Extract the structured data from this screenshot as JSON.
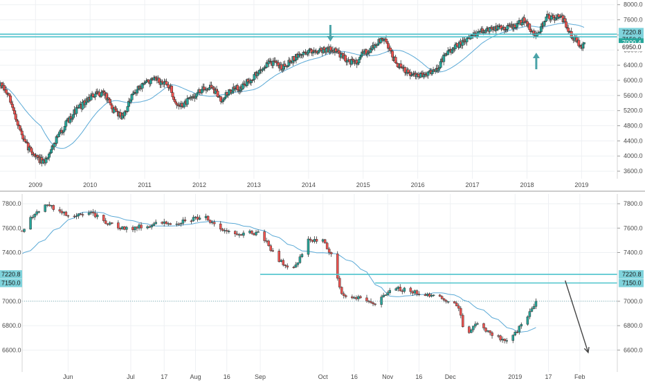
{
  "colors": {
    "up": "#26a69a",
    "down": "#ef5350",
    "ma": "#5aa9d6",
    "level": "#4cc3cc",
    "level_tag": "#7fd3dc",
    "price_tag": "#26a69a",
    "arrow_teal": "#4aa3a8",
    "arrow_dark": "#444444",
    "grid": "#eef0f3",
    "axis_text": "#4a4a4a"
  },
  "chart_data": [
    {
      "type": "candlestick",
      "panel": "top",
      "timeframe": "weekly",
      "x_ticks": [
        "2009",
        "2010",
        "2011",
        "2012",
        "2013",
        "2014",
        "2015",
        "2016",
        "2017",
        "2018",
        "2019"
      ],
      "x_range": [
        2008.35,
        2019.35
      ],
      "y_ticks": [
        "8000.0",
        "7600.0",
        "7200.0",
        "6800.0",
        "6400.0",
        "6000.0",
        "5600.0",
        "5200.0",
        "4800.0",
        "4400.0",
        "4000.0",
        "3600.0"
      ],
      "ylim": [
        3400,
        8050
      ],
      "levels": [
        7220.8,
        7150.0,
        6950.0
      ],
      "level_labels": [
        "7220.8",
        "7150.0",
        "6950.0"
      ],
      "last_price": 7000.4,
      "last_price_label": "7000.4",
      "arrows": [
        {
          "x": 2014.4,
          "direction": "down",
          "color": "teal"
        },
        {
          "x": 2018.17,
          "direction": "up",
          "color": "teal"
        }
      ],
      "anchors": [
        [
          2008.35,
          5900
        ],
        [
          2008.5,
          5600
        ],
        [
          2008.8,
          4350
        ],
        [
          2009.0,
          4000
        ],
        [
          2009.15,
          3800
        ],
        [
          2009.4,
          4500
        ],
        [
          2009.7,
          5150
        ],
        [
          2009.9,
          5400
        ],
        [
          2010.0,
          5550
        ],
        [
          2010.25,
          5700
        ],
        [
          2010.4,
          5250
        ],
        [
          2010.6,
          5050
        ],
        [
          2010.8,
          5650
        ],
        [
          2011.0,
          5950
        ],
        [
          2011.2,
          6000
        ],
        [
          2011.45,
          5850
        ],
        [
          2011.6,
          5300
        ],
        [
          2011.75,
          5400
        ],
        [
          2012.0,
          5700
        ],
        [
          2012.2,
          5850
        ],
        [
          2012.4,
          5500
        ],
        [
          2012.55,
          5700
        ],
        [
          2012.8,
          5850
        ],
        [
          2013.0,
          6100
        ],
        [
          2013.3,
          6500
        ],
        [
          2013.5,
          6350
        ],
        [
          2013.7,
          6550
        ],
        [
          2013.95,
          6750
        ],
        [
          2014.15,
          6800
        ],
        [
          2014.45,
          6820
        ],
        [
          2014.7,
          6550
        ],
        [
          2014.85,
          6450
        ],
        [
          2015.0,
          6700
        ],
        [
          2015.2,
          6900
        ],
        [
          2015.35,
          7100
        ],
        [
          2015.45,
          6950
        ],
        [
          2015.6,
          6450
        ],
        [
          2015.8,
          6200
        ],
        [
          2016.0,
          6100
        ],
        [
          2016.15,
          6200
        ],
        [
          2016.35,
          6300
        ],
        [
          2016.5,
          6650
        ],
        [
          2016.7,
          6900
        ],
        [
          2016.9,
          7050
        ],
        [
          2017.0,
          7200
        ],
        [
          2017.3,
          7350
        ],
        [
          2017.55,
          7400
        ],
        [
          2017.8,
          7450
        ],
        [
          2017.95,
          7600
        ],
        [
          2018.1,
          7300
        ],
        [
          2018.2,
          7150
        ],
        [
          2018.35,
          7700
        ],
        [
          2018.5,
          7650
        ],
        [
          2018.6,
          7750
        ],
        [
          2018.7,
          7500
        ],
        [
          2018.8,
          7200
        ],
        [
          2018.9,
          7050
        ],
        [
          2019.0,
          6850
        ],
        [
          2019.06,
          7000
        ]
      ]
    },
    {
      "type": "candlestick",
      "panel": "bottom",
      "timeframe": "daily",
      "x_ticks": [
        "Jun",
        "Jul",
        "17",
        "Aug",
        "16",
        "Sep",
        "Oct",
        "16",
        "Nov",
        "16",
        "Dec",
        "2019",
        "17",
        "Feb"
      ],
      "y_ticks": [
        "7800.0",
        "7600.0",
        "7400.0",
        "7000.0",
        "6800.0",
        "6600.0"
      ],
      "ylim": [
        6420,
        7880
      ],
      "levels": [
        7220.8,
        7150.0
      ],
      "level_labels": [
        "7220.8",
        "7150.0"
      ],
      "reference_line": 7000.4,
      "arrows": [
        {
          "direction": "down",
          "color": "dark",
          "from": [
            "2019-01-25",
            7170
          ],
          "to": [
            "2019-02-05",
            6580
          ]
        }
      ],
      "anchors": [
        [
          "2018-05-10",
          7580
        ],
        [
          "2018-05-16",
          7720
        ],
        [
          "2018-05-22",
          7790
        ],
        [
          "2018-05-28",
          7730
        ],
        [
          "2018-06-03",
          7700
        ],
        [
          "2018-06-12",
          7720
        ],
        [
          "2018-06-20",
          7640
        ],
        [
          "2018-06-28",
          7590
        ],
        [
          "2018-07-05",
          7610
        ],
        [
          "2018-07-15",
          7640
        ],
        [
          "2018-07-25",
          7650
        ],
        [
          "2018-08-05",
          7700
        ],
        [
          "2018-08-12",
          7610
        ],
        [
          "2018-08-18",
          7550
        ],
        [
          "2018-08-25",
          7560
        ],
        [
          "2018-09-01",
          7560
        ],
        [
          "2018-09-07",
          7400
        ],
        [
          "2018-09-12",
          7300
        ],
        [
          "2018-09-18",
          7290
        ],
        [
          "2018-09-24",
          7500
        ],
        [
          "2018-10-01",
          7500
        ],
        [
          "2018-10-05",
          7380
        ],
        [
          "2018-10-10",
          7060
        ],
        [
          "2018-10-15",
          7030
        ],
        [
          "2018-10-20",
          7030
        ],
        [
          "2018-10-26",
          6980
        ],
        [
          "2018-10-31",
          7050
        ],
        [
          "2018-11-05",
          7110
        ],
        [
          "2018-11-12",
          7080
        ],
        [
          "2018-11-20",
          7050
        ],
        [
          "2018-11-28",
          7020
        ],
        [
          "2018-12-05",
          6950
        ],
        [
          "2018-12-08",
          6720
        ],
        [
          "2018-12-14",
          6820
        ],
        [
          "2018-12-20",
          6740
        ],
        [
          "2018-12-27",
          6680
        ],
        [
          "2018-12-31",
          6710
        ],
        [
          "2019-01-05",
          6830
        ],
        [
          "2019-01-10",
          6960
        ],
        [
          "2019-01-11",
          7000
        ]
      ]
    }
  ]
}
